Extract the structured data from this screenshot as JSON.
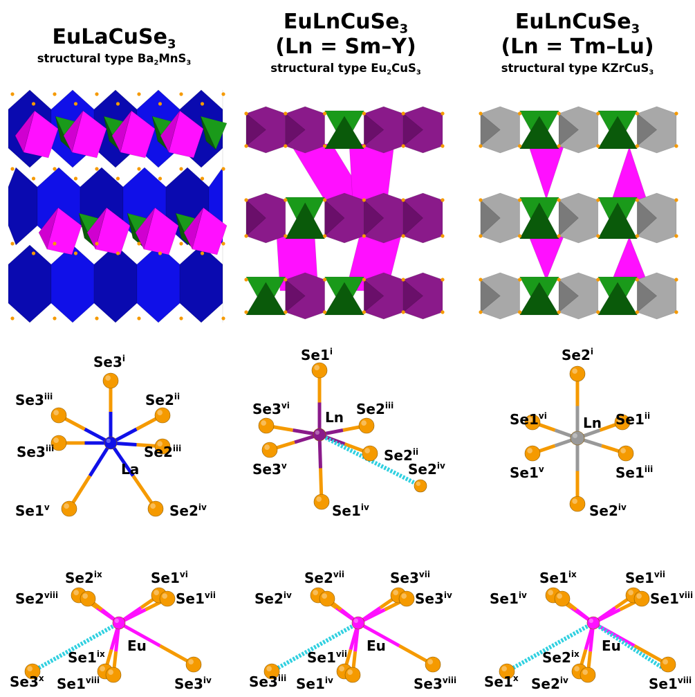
{
  "columns": [
    {
      "formula_main": "EuLaCuSe",
      "formula_sub": "3",
      "ln_line": "",
      "stype_prefix": "structural type ",
      "stype_main": "Ba",
      "stype_sub1": "2",
      "stype_mid": "MnS",
      "stype_sub2": "3"
    },
    {
      "formula_main": "EuLnCuSe",
      "formula_sub": "3",
      "ln_line": "(Ln = Sm–Y)",
      "stype_prefix": "structural type ",
      "stype_main": "Eu",
      "stype_sub1": "2",
      "stype_mid": "CuS",
      "stype_sub2": "3"
    },
    {
      "formula_main": "EuLnCuSe",
      "formula_sub": "3",
      "ln_line": "(Ln = Tm–Lu)",
      "stype_prefix": "structural type ",
      "stype_main": "KZrCuS",
      "stype_sub1": "3",
      "stype_mid": "",
      "stype_sub2": ""
    }
  ],
  "colors": {
    "blue": "#1010e8",
    "blue_dark": "#0a0ab0",
    "purple": "#8a1a8a",
    "purple_dark": "#6a0f6a",
    "magenta": "#ff10ff",
    "magenta_dark": "#d000d0",
    "green": "#1a9a1a",
    "green_dark": "#0a5a0a",
    "gray": "#a8a8a8",
    "gray_dark": "#7a7a7a",
    "orange": "#f59a00",
    "cyan": "#30d0e0"
  },
  "coord_panels": [
    {
      "center_label": "La",
      "center_color": "#1010e8",
      "labels": [
        {
          "base": "Se3",
          "sup": "i"
        },
        {
          "base": "Se3",
          "sup": "iii"
        },
        {
          "base": "Se2",
          "sup": "ii"
        },
        {
          "base": "Se3",
          "sup": "iii"
        },
        {
          "base": "Se2",
          "sup": "iii"
        },
        {
          "base": "Se1",
          "sup": "v"
        },
        {
          "base": "Se2",
          "sup": "iv"
        }
      ]
    },
    {
      "center_label": "Ln",
      "center_color": "#8a1a8a",
      "labels": [
        {
          "base": "Se1",
          "sup": "i"
        },
        {
          "base": "Se3",
          "sup": "vi"
        },
        {
          "base": "Se2",
          "sup": "iii"
        },
        {
          "base": "Se2",
          "sup": "ii"
        },
        {
          "base": "Se3",
          "sup": "v"
        },
        {
          "base": "Se2",
          "sup": "iv"
        },
        {
          "base": "Se1",
          "sup": "iv"
        }
      ]
    },
    {
      "center_label": "Ln",
      "center_color": "#999999",
      "labels": [
        {
          "base": "Se2",
          "sup": "i"
        },
        {
          "base": "Se1",
          "sup": "vi"
        },
        {
          "base": "Se1",
          "sup": "ii"
        },
        {
          "base": "Se1",
          "sup": "v"
        },
        {
          "base": "Se1",
          "sup": "iii"
        },
        {
          "base": "Se2",
          "sup": "iv"
        }
      ]
    }
  ],
  "eu_panels": [
    {
      "center_label": "Eu",
      "labels": [
        {
          "base": "Se2",
          "sup": "ix"
        },
        {
          "base": "Se1",
          "sup": "vi"
        },
        {
          "base": "Se2",
          "sup": "viii"
        },
        {
          "base": "Se1",
          "sup": "vii"
        },
        {
          "base": "Se3",
          "sup": "x"
        },
        {
          "base": "Se1",
          "sup": "ix"
        },
        {
          "base": "Se1",
          "sup": "viii"
        },
        {
          "base": "Se3",
          "sup": "iv"
        }
      ]
    },
    {
      "center_label": "Eu",
      "labels": [
        {
          "base": "Se2",
          "sup": "vii"
        },
        {
          "base": "Se3",
          "sup": "vii"
        },
        {
          "base": "Se2",
          "sup": "iv"
        },
        {
          "base": "Se3",
          "sup": "iv"
        },
        {
          "base": "Se3",
          "sup": "iii"
        },
        {
          "base": "Se1",
          "sup": "vii"
        },
        {
          "base": "Se1",
          "sup": "iv"
        },
        {
          "base": "Se3",
          "sup": "viii"
        }
      ]
    },
    {
      "center_label": "Eu",
      "labels": [
        {
          "base": "Se1",
          "sup": "ix"
        },
        {
          "base": "Se1",
          "sup": "vii"
        },
        {
          "base": "Se1",
          "sup": "iv"
        },
        {
          "base": "Se1",
          "sup": "viii"
        },
        {
          "base": "Se1",
          "sup": "x"
        },
        {
          "base": "Se2",
          "sup": "ix"
        },
        {
          "base": "Se2",
          "sup": "iv"
        },
        {
          "base": "Se1",
          "sup": "viii"
        }
      ]
    }
  ]
}
